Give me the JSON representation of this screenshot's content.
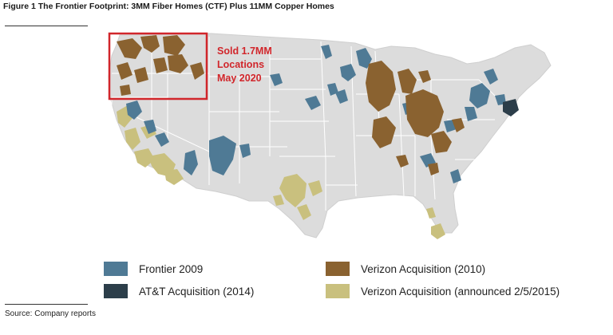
{
  "figure": {
    "title": "Figure 1 The Frontier Footprint: 3MM Fiber Homes (CTF) Plus 11MM Copper Homes",
    "source": "Source: Company reports"
  },
  "callout": {
    "line1": "Sold 1.7MM",
    "line2": "Locations",
    "line3": "May 2020",
    "color": "#d1262b"
  },
  "colors": {
    "land": "#dcdcdc",
    "border": "#ffffff",
    "frontier_2009": "#4f7a95",
    "att_2014": "#2c3e4a",
    "verizon_2010": "#8a6230",
    "verizon_2015": "#c9c07e"
  },
  "legend": {
    "frontier_2009": "Frontier 2009",
    "att_2014": "AT&T Acquisition (2014)",
    "verizon_2010": "Verizon Acquisition (2010)",
    "verizon_2015": "Verizon Acquisition (announced 2/5/2015)"
  }
}
